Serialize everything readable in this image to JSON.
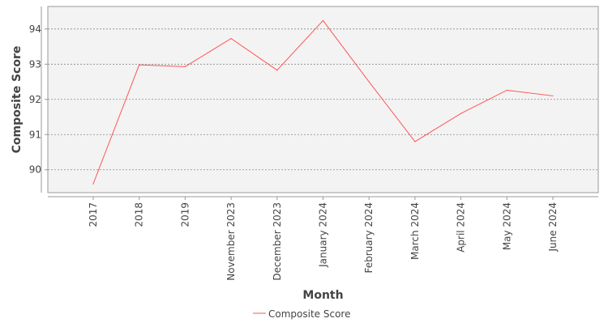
{
  "chart_data": {
    "type": "line",
    "xlabel": "Month",
    "ylabel": "Composite Score",
    "categories": [
      "2017",
      "2018",
      "2019",
      "November 2023",
      "December 2023",
      "January 2024",
      "February 2024",
      "March 2024",
      "April 2024",
      "May 2024",
      "June 2024"
    ],
    "series": [
      {
        "name": "Composite Score",
        "color": "#ff5555",
        "values": [
          89.6,
          92.98,
          92.93,
          93.73,
          92.83,
          94.24,
          92.5,
          90.8,
          91.6,
          92.26,
          92.1
        ]
      }
    ],
    "ylim": [
      89.35,
      94.64
    ],
    "yticks": [
      90,
      91,
      92,
      93,
      94
    ],
    "grid": true,
    "legend_position": "bottom",
    "colors": {
      "plot_background": "#f3f3f3",
      "grid": "#888888",
      "axis": "#999999",
      "text": "#444444"
    }
  }
}
